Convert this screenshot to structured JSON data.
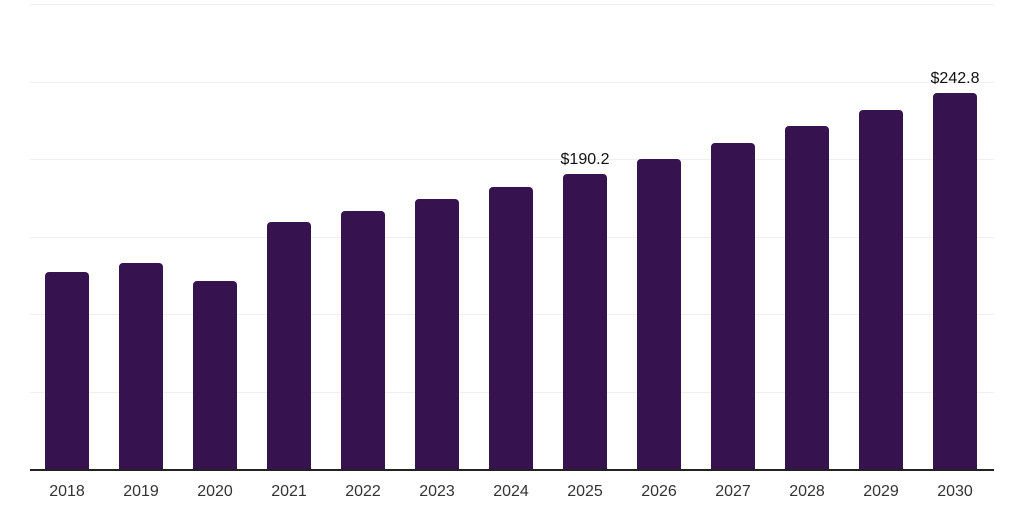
{
  "chart_data": {
    "type": "bar",
    "title": "",
    "xlabel": "",
    "ylabel": "",
    "categories": [
      "2018",
      "2019",
      "2020",
      "2021",
      "2022",
      "2023",
      "2024",
      "2025",
      "2026",
      "2027",
      "2028",
      "2029",
      "2030"
    ],
    "values": [
      127.0,
      132.9,
      121.3,
      159.4,
      166.5,
      174.2,
      181.9,
      190.2,
      199.8,
      210.3,
      221.3,
      231.6,
      242.8
    ],
    "value_labels": {
      "2025": "$190.2",
      "2030": "$242.8"
    },
    "ylim": [
      0,
      300
    ],
    "gridline_step": 50,
    "grid": true,
    "legend": false,
    "colors": {
      "bar": "#36124e",
      "gridline": "#f0f0f0",
      "axis": "#222222",
      "tick_label": "#333333",
      "value_label": "#111111"
    }
  }
}
